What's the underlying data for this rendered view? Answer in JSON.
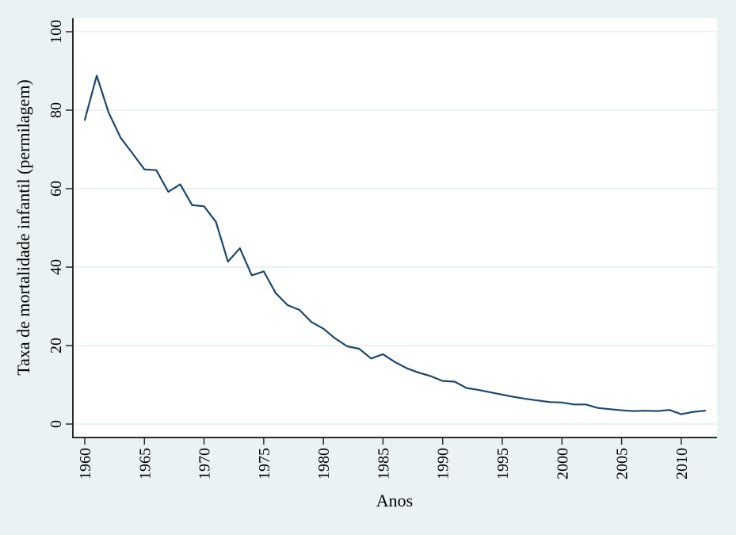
{
  "chart_data": {
    "type": "line",
    "title": "",
    "xlabel": "Anos",
    "ylabel": "Taxa de mortalidade infantil (permilagem)",
    "x_ticks": [
      "1960",
      "1965",
      "1970",
      "1975",
      "1980",
      "1985",
      "1990",
      "1995",
      "2000",
      "2005",
      "2010"
    ],
    "y_ticks": [
      "0",
      "20",
      "40",
      "60",
      "80",
      "100"
    ],
    "xlim": [
      1960,
      2012
    ],
    "ylim": [
      0,
      100
    ],
    "grid": "horizontal gridlines at y ticks",
    "legend": "none",
    "tick_label_rotation": "vertical",
    "series": [
      {
        "name": "Taxa de mortalidade infantil (permilagem)",
        "x": [
          1960,
          1961,
          1962,
          1963,
          1964,
          1965,
          1966,
          1967,
          1968,
          1969,
          1970,
          1971,
          1972,
          1973,
          1974,
          1975,
          1976,
          1977,
          1978,
          1979,
          1980,
          1981,
          1982,
          1983,
          1984,
          1985,
          1986,
          1987,
          1988,
          1989,
          1990,
          1991,
          1992,
          1993,
          1994,
          1995,
          1996,
          1997,
          1998,
          1999,
          2000,
          2001,
          2002,
          2003,
          2004,
          2005,
          2006,
          2007,
          2008,
          2009,
          2010,
          2011,
          2012
        ],
        "y": [
          77.5,
          88.8,
          79.4,
          73.0,
          69.0,
          64.9,
          64.7,
          59.2,
          61.1,
          55.8,
          55.5,
          51.5,
          41.4,
          44.8,
          37.9,
          38.9,
          33.4,
          30.3,
          29.1,
          26.0,
          24.3,
          21.8,
          19.8,
          19.2,
          16.7,
          17.8,
          15.8,
          14.2,
          13.1,
          12.2,
          11.0,
          10.8,
          9.2,
          8.7,
          8.1,
          7.5,
          6.9,
          6.4,
          6.0,
          5.6,
          5.5,
          5.0,
          5.0,
          4.1,
          3.8,
          3.5,
          3.3,
          3.4,
          3.3,
          3.6,
          2.5,
          3.1,
          3.4
        ]
      }
    ],
    "colors": {
      "line": "#1a476f",
      "background": "#eaf2f3",
      "plot_background": "#ffffff",
      "grid": "#e3eef1",
      "axis": "#2b2b2b",
      "text": "#000000"
    }
  }
}
